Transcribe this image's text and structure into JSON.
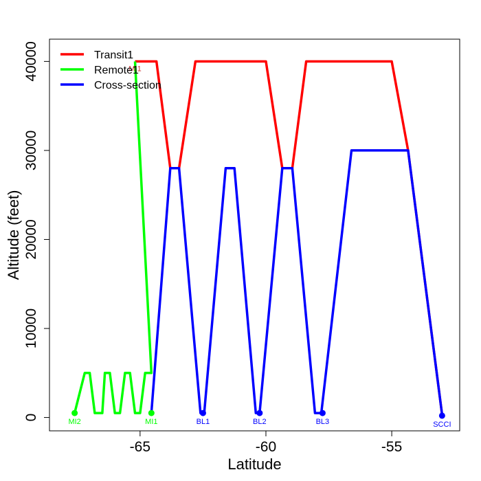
{
  "chart_data": {
    "type": "line",
    "title": "",
    "xlabel": "Latitude",
    "ylabel": "Altitude (feet)",
    "xlim": [
      -68.6,
      -52.3
    ],
    "ylim": [
      -1500,
      42500
    ],
    "xticks": [
      -65,
      -60,
      -55
    ],
    "xtick_labels": [
      "-65",
      "-60",
      "-55"
    ],
    "yticks": [
      0,
      10000,
      20000,
      30000,
      40000
    ],
    "ytick_labels": [
      "0",
      "10000",
      "20000",
      "30000",
      "40000"
    ],
    "grid": false,
    "legend_position": "top-left",
    "series": [
      {
        "name": "Transit1",
        "color": "#ff0000",
        "x": [
          -65.2,
          -64.35,
          -63.8,
          -63.45,
          -62.8,
          -60.0,
          -59.35,
          -58.95,
          -58.4,
          -55.0,
          -54.35,
          -53.0
        ],
        "y": [
          40000,
          40000,
          28000,
          28000,
          40000,
          40000,
          28000,
          28000,
          40000,
          40000,
          30000,
          300
        ]
      },
      {
        "name": "Remote1",
        "color": "#00ff00",
        "x": [
          -67.6,
          -67.2,
          -67.0,
          -66.8,
          -66.5,
          -66.4,
          -66.2,
          -66.0,
          -65.8,
          -65.6,
          -65.4,
          -65.2,
          -65.0,
          -64.8,
          -64.55,
          -65.2
        ],
        "y": [
          500,
          5000,
          5000,
          500,
          500,
          5000,
          5000,
          500,
          500,
          5000,
          5000,
          500,
          500,
          5000,
          5000,
          40000
        ]
      },
      {
        "name": "Cross-section",
        "color": "#0000ff",
        "x": [
          -64.55,
          -63.8,
          -63.45,
          -62.6,
          -62.45,
          -61.6,
          -61.25,
          -60.4,
          -60.25,
          -59.35,
          -58.95,
          -58.05,
          -57.8,
          -56.6,
          -54.35,
          -53.0
        ],
        "y": [
          500,
          28000,
          28000,
          500,
          500,
          28000,
          28000,
          500,
          500,
          28000,
          28000,
          500,
          500,
          30000,
          30000,
          300
        ]
      }
    ],
    "points": [
      {
        "label": "MI2",
        "x": -67.6,
        "y": 500,
        "color": "#00ff00"
      },
      {
        "label": "MI1",
        "x": -64.55,
        "y": 500,
        "color": "#00ff00"
      },
      {
        "label": "BL1",
        "x": -62.5,
        "y": 500,
        "color": "#0000ff"
      },
      {
        "label": "BL2",
        "x": -60.25,
        "y": 500,
        "color": "#0000ff"
      },
      {
        "label": "BL3",
        "x": -57.75,
        "y": 500,
        "color": "#0000ff"
      },
      {
        "label": "SCCI",
        "x": -53.0,
        "y": 200,
        "color": "#0000ff"
      }
    ],
    "annotations": [
      {
        "text": "MI1",
        "x": -65.2,
        "y": 40000,
        "color": "#cc3333"
      }
    ]
  }
}
